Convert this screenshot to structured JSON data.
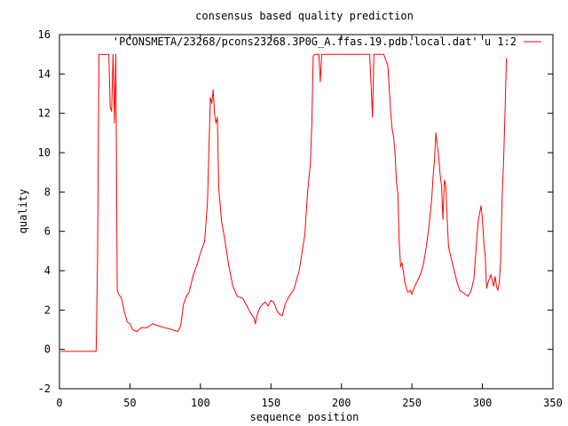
{
  "chart_data": {
    "type": "line",
    "title": "consensus based quality prediction",
    "xlabel": "sequence position",
    "ylabel": "quality",
    "xlim": [
      0,
      350
    ],
    "ylim": [
      -2,
      16
    ],
    "xticks": [
      0,
      50,
      100,
      150,
      200,
      250,
      300,
      350
    ],
    "yticks": [
      -2,
      0,
      2,
      4,
      6,
      8,
      10,
      12,
      14,
      16
    ],
    "grid": false,
    "legend_position": "top-right",
    "series": [
      {
        "name": "'PCONSMETA/23268/pcons23268.3P0G_A.ffas.19.pdb.local.dat' u 1:2",
        "color": "#ff0000",
        "x": [
          1,
          26,
          27,
          28,
          30,
          35,
          36,
          37,
          38,
          39,
          40,
          41,
          42,
          44,
          46,
          48,
          50,
          52,
          55,
          58,
          62,
          66,
          70,
          75,
          80,
          84,
          86,
          88,
          90,
          92,
          95,
          98,
          100,
          103,
          105,
          107,
          108,
          109,
          110,
          111,
          112,
          113,
          115,
          117,
          120,
          123,
          126,
          130,
          133,
          136,
          138,
          139,
          140,
          142,
          144,
          146,
          148,
          150,
          152,
          154,
          156,
          158,
          160,
          163,
          166,
          170,
          174,
          176,
          178,
          179,
          180,
          181,
          182,
          184,
          185,
          186,
          187,
          188,
          190,
          200,
          210,
          220,
          221,
          222,
          223,
          224,
          225,
          226,
          228,
          230,
          233,
          235,
          236,
          237,
          238,
          239,
          240,
          241,
          242,
          243,
          245,
          247,
          249,
          250,
          252,
          254,
          256,
          258,
          260,
          262,
          264,
          265,
          266,
          267,
          268,
          269,
          270,
          271,
          272,
          273,
          274,
          275,
          276,
          278,
          280,
          282,
          284,
          286,
          288,
          290,
          292,
          293,
          294,
          295,
          296,
          297,
          298,
          299,
          300,
          301,
          302,
          303,
          304,
          305,
          306,
          308,
          309,
          310,
          311,
          312,
          313,
          314,
          315,
          316,
          317
        ],
        "y": [
          -0.1,
          -0.1,
          4.5,
          15,
          15,
          15,
          12.3,
          12.1,
          15,
          11.5,
          15,
          3,
          2.8,
          2.6,
          1.9,
          1.4,
          1.3,
          1.0,
          0.9,
          1.1,
          1.1,
          1.3,
          1.2,
          1.1,
          1.0,
          0.9,
          1.2,
          2.3,
          2.7,
          2.9,
          3.8,
          4.4,
          4.9,
          5.5,
          7.5,
          12.8,
          12.5,
          13.2,
          12.0,
          11.5,
          11.8,
          8.2,
          6.5,
          5.7,
          4.3,
          3.2,
          2.7,
          2.6,
          2.2,
          1.8,
          1.6,
          1.3,
          1.7,
          2.1,
          2.3,
          2.4,
          2.2,
          2.5,
          2.4,
          2.0,
          1.8,
          1.7,
          2.3,
          2.7,
          3.0,
          4.0,
          5.8,
          8.0,
          9.5,
          11.5,
          14.9,
          15,
          15,
          15,
          13.6,
          15,
          15,
          15,
          15,
          15,
          15,
          15,
          13.5,
          11.8,
          15,
          15,
          15,
          15,
          15,
          15,
          14.4,
          12.0,
          11.2,
          10.8,
          10.0,
          8.5,
          7.9,
          5.5,
          4.2,
          4.4,
          3.4,
          2.9,
          3.0,
          2.8,
          3.2,
          3.5,
          3.8,
          4.3,
          5.1,
          6.2,
          7.6,
          8.8,
          9.6,
          11.0,
          10.4,
          9.8,
          8.9,
          8.3,
          6.6,
          8.6,
          8.3,
          6.6,
          5.2,
          4.6,
          4.0,
          3.4,
          3.0,
          2.9,
          2.8,
          2.7,
          3.0,
          3.3,
          3.6,
          4.6,
          5.6,
          6.5,
          6.9,
          7.3,
          6.6,
          5.4,
          4.8,
          3.1,
          3.4,
          3.6,
          3.8,
          3.2,
          3.7,
          3.2,
          3.0,
          3.4,
          4.6,
          7.8,
          9.5,
          12.0,
          14.8
        ]
      }
    ]
  }
}
